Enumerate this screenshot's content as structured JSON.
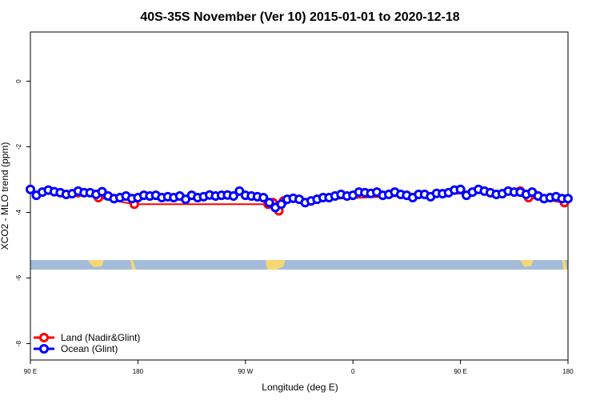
{
  "chart_data": {
    "type": "line",
    "title": "40S-35S November (Ver 10)   2015-01-01 to 2020-12-18",
    "x_label": "Longitude (deg E)",
    "y_label": "XCO2 - MLO trend (ppm)",
    "xlim": [
      90,
      540
    ],
    "ylim": [
      -8.5,
      1.5
    ],
    "xticks": [
      {
        "value": 90,
        "label": "90 E"
      },
      {
        "value": 180,
        "label": "180"
      },
      {
        "value": 270,
        "label": "90 W"
      },
      {
        "value": 360,
        "label": "0"
      },
      {
        "value": 450,
        "label": "90 E"
      },
      {
        "value": 540,
        "label": "180"
      }
    ],
    "yticks": [
      -8,
      -6,
      -4,
      -2,
      0
    ],
    "legend": "bottom-left",
    "series": [
      {
        "name": "Land (Nadir&Glint)",
        "color": "#ff0000",
        "x": [
          130,
          147,
          177,
          289,
          293,
          298,
          302,
          500,
          507,
          537
        ],
        "values": [
          -3.4,
          -3.55,
          -3.75,
          -3.75,
          -3.7,
          -3.95,
          -3.65,
          -3.35,
          -3.55,
          -3.7
        ]
      },
      {
        "name": "Ocean (Glint)",
        "color": "#0000ff",
        "x": [
          90,
          95,
          100,
          105,
          110,
          115,
          120,
          125,
          130,
          135,
          140,
          145,
          150,
          155,
          160,
          165,
          170,
          175,
          180,
          185,
          190,
          195,
          200,
          205,
          210,
          215,
          220,
          225,
          230,
          235,
          240,
          245,
          250,
          255,
          260,
          265,
          270,
          275,
          280,
          285,
          290,
          295,
          300,
          305,
          310,
          315,
          320,
          325,
          330,
          335,
          340,
          345,
          350,
          355,
          360,
          365,
          370,
          375,
          380,
          385,
          390,
          395,
          400,
          405,
          410,
          415,
          420,
          425,
          430,
          435,
          440,
          445,
          450,
          455,
          460,
          465,
          470,
          475,
          480,
          485,
          490,
          495,
          500,
          505,
          510,
          515,
          520,
          525,
          530,
          535,
          540
        ],
        "values": [
          -3.3,
          -3.48,
          -3.38,
          -3.32,
          -3.37,
          -3.4,
          -3.45,
          -3.43,
          -3.35,
          -3.4,
          -3.4,
          -3.45,
          -3.37,
          -3.5,
          -3.58,
          -3.55,
          -3.5,
          -3.58,
          -3.55,
          -3.48,
          -3.5,
          -3.48,
          -3.55,
          -3.52,
          -3.55,
          -3.5,
          -3.6,
          -3.48,
          -3.55,
          -3.52,
          -3.47,
          -3.5,
          -3.48,
          -3.47,
          -3.5,
          -3.35,
          -3.48,
          -3.5,
          -3.52,
          -3.55,
          -3.7,
          -3.85,
          -3.75,
          -3.6,
          -3.57,
          -3.6,
          -3.7,
          -3.65,
          -3.6,
          -3.55,
          -3.55,
          -3.5,
          -3.45,
          -3.5,
          -3.48,
          -3.38,
          -3.4,
          -3.42,
          -3.38,
          -3.48,
          -3.45,
          -3.38,
          -3.45,
          -3.48,
          -3.55,
          -3.45,
          -3.45,
          -3.52,
          -3.42,
          -3.43,
          -3.4,
          -3.32,
          -3.3,
          -3.48,
          -3.38,
          -3.3,
          -3.35,
          -3.4,
          -3.45,
          -3.43,
          -3.35,
          -3.38,
          -3.38,
          -3.45,
          -3.38,
          -3.5,
          -3.58,
          -3.55,
          -3.52,
          -3.58,
          -3.58
        ]
      }
    ]
  }
}
